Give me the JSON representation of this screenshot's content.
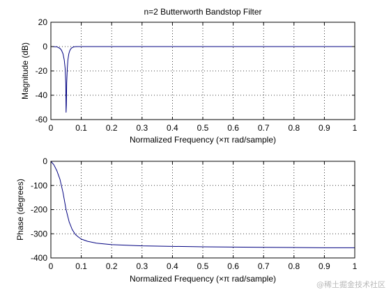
{
  "chart_data": [
    {
      "type": "line",
      "title": "n=2 Butterworth Bandstop Filter",
      "xlabel": "Normalized Frequency  (×π rad/sample)",
      "ylabel": "Magnitude (dB)",
      "xlim": [
        0,
        1
      ],
      "ylim": [
        -60,
        20
      ],
      "xticks": [
        0,
        0.1,
        0.2,
        0.3,
        0.4,
        0.5,
        0.6,
        0.7,
        0.8,
        0.9,
        1
      ],
      "yticks": [
        20,
        0,
        -20,
        -40,
        -60
      ],
      "grid": true,
      "line_color": "#000080",
      "series": [
        {
          "x": [
            0,
            0.02,
            0.03,
            0.035,
            0.04,
            0.044,
            0.047,
            0.049,
            0.05,
            0.051,
            0.052,
            0.054,
            0.056,
            0.059,
            0.062,
            0.065,
            0.07,
            0.075,
            0.08,
            0.09,
            0.1,
            0.2,
            0.5,
            0.8,
            1
          ],
          "y": [
            0,
            -0.2,
            -1.5,
            -3,
            -6,
            -11,
            -18,
            -30,
            -54,
            -48,
            -30,
            -18,
            -11,
            -6,
            -3.5,
            -2,
            -0.8,
            -0.3,
            -0.1,
            0,
            0,
            0,
            0,
            0,
            0
          ]
        }
      ]
    },
    {
      "type": "line",
      "title": "",
      "xlabel": "Normalized Frequency  (×π rad/sample)",
      "ylabel": "Phase (degrees)",
      "xlim": [
        0,
        1
      ],
      "ylim": [
        -400,
        0
      ],
      "xticks": [
        0,
        0.1,
        0.2,
        0.3,
        0.4,
        0.5,
        0.6,
        0.7,
        0.8,
        0.9,
        1
      ],
      "yticks": [
        0,
        -100,
        -200,
        -300,
        -400
      ],
      "grid": true,
      "line_color": "#000080",
      "series": [
        {
          "x": [
            0,
            0.01,
            0.02,
            0.03,
            0.04,
            0.05,
            0.06,
            0.07,
            0.08,
            0.09,
            0.1,
            0.12,
            0.15,
            0.2,
            0.3,
            0.4,
            0.5,
            0.6,
            0.7,
            0.8,
            0.9,
            1
          ],
          "y": [
            0,
            -15,
            -40,
            -75,
            -130,
            -200,
            -250,
            -282,
            -302,
            -313,
            -322,
            -331,
            -339,
            -345,
            -350,
            -352,
            -354,
            -355,
            -356,
            -357,
            -358,
            -358
          ]
        }
      ]
    }
  ],
  "watermark": "@稀土掘金技术社区"
}
